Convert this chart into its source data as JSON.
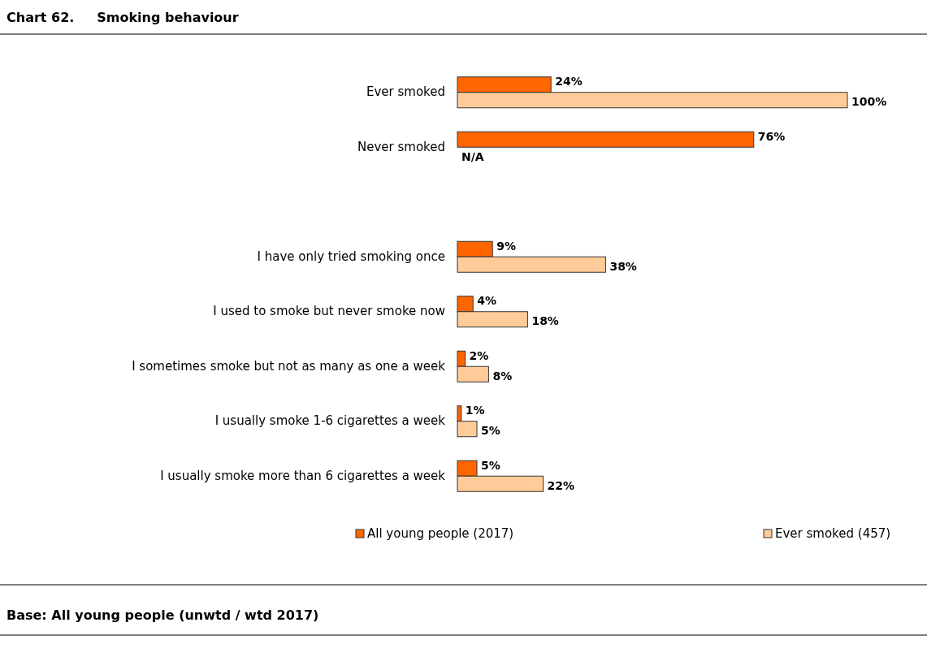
{
  "chart_data": {
    "type": "bar",
    "orientation": "horizontal",
    "title": "Chart 62.     Smoking behaviour",
    "categories": [
      "Ever smoked",
      "Never smoked",
      null,
      "I have only tried smoking once",
      "I used to smoke but never smoke now",
      "I sometimes smoke but not as many as one a week",
      "I usually smoke 1-6 cigarettes a week",
      "I usually smoke more than 6 cigarettes a week"
    ],
    "series": [
      {
        "name": "All young people (2017)",
        "color": "#ff6600",
        "values": [
          24,
          76,
          null,
          9,
          4,
          2,
          1,
          5
        ],
        "value_labels": [
          "24%",
          "76%",
          null,
          "9%",
          "4%",
          "2%",
          "1%",
          "5%"
        ]
      },
      {
        "name": "Ever smoked (457)",
        "color": "#ffcc99",
        "values": [
          100,
          null,
          null,
          38,
          18,
          8,
          5,
          22
        ],
        "value_labels": [
          "100%",
          "N/A",
          null,
          "38%",
          "18%",
          "8%",
          "5%",
          "22%"
        ]
      }
    ],
    "legend": "bottom",
    "annotations": [
      "Base: All young people (unwtd / wtd 2017)"
    ]
  }
}
